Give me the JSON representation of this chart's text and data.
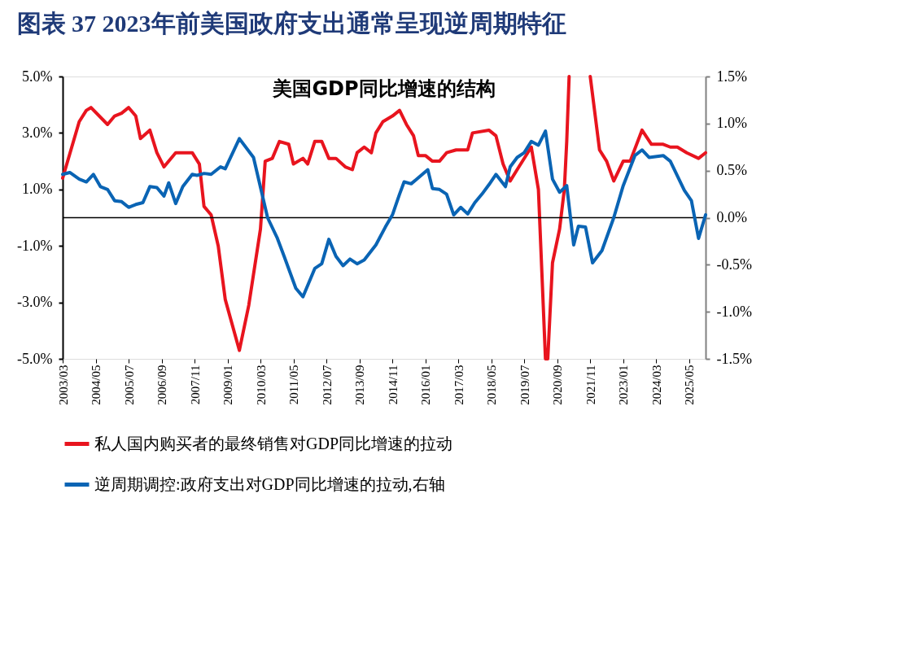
{
  "chart_data": {
    "type": "line",
    "title": "图表 37   2023年前美国政府支出通常呈现逆周期特征",
    "subtitle": "美国GDP同比增速的结构",
    "xlim": [
      "2003-03",
      "2025-12"
    ],
    "xticks": [
      {
        "value": "2003-03",
        "label": "2003/03"
      },
      {
        "value": "2004-05",
        "label": "2004/05"
      },
      {
        "value": "2005-07",
        "label": "2005/07"
      },
      {
        "value": "2006-09",
        "label": "2006/09"
      },
      {
        "value": "2007-11",
        "label": "2007/11"
      },
      {
        "value": "2009-01",
        "label": "2009/01"
      },
      {
        "value": "2010-03",
        "label": "2010/03"
      },
      {
        "value": "2011-05",
        "label": "2011/05"
      },
      {
        "value": "2012-07",
        "label": "2012/07"
      },
      {
        "value": "2013-09",
        "label": "2013/09"
      },
      {
        "value": "2014-11",
        "label": "2014/11"
      },
      {
        "value": "2016-01",
        "label": "2016/01"
      },
      {
        "value": "2017-03",
        "label": "2017/03"
      },
      {
        "value": "2018-05",
        "label": "2018/05"
      },
      {
        "value": "2019-07",
        "label": "2019/07"
      },
      {
        "value": "2020-09",
        "label": "2020/09"
      },
      {
        "value": "2021-11",
        "label": "2021/11"
      },
      {
        "value": "2023-01",
        "label": "2023/01"
      },
      {
        "value": "2024-03",
        "label": "2024/03"
      },
      {
        "value": "2025-05",
        "label": "2025/05"
      }
    ],
    "ylim": [
      -5,
      5
    ],
    "yticks": [
      {
        "value": -5,
        "label": "-5.0%"
      },
      {
        "value": -3,
        "label": "-3.0%"
      },
      {
        "value": -1,
        "label": "-1.0%"
      },
      {
        "value": 1,
        "label": "1.0%"
      },
      {
        "value": 3,
        "label": "3.0%"
      },
      {
        "value": 5,
        "label": "5.0%"
      }
    ],
    "y2lim": [
      -1.5,
      1.5
    ],
    "y2ticks": [
      {
        "value": -1.5,
        "label": "-1.5%"
      },
      {
        "value": -1,
        "label": "-1.0%"
      },
      {
        "value": -0.5,
        "label": "-0.5%"
      },
      {
        "value": 0,
        "label": "0.0%"
      },
      {
        "value": 0.5,
        "label": "0.5%"
      },
      {
        "value": 1,
        "label": "1.0%"
      },
      {
        "value": 1.5,
        "label": "1.5%"
      }
    ],
    "ref_lines": [
      {
        "axis": "y",
        "value": 0,
        "color": "#000000"
      }
    ],
    "grid": false,
    "legend": "bottom",
    "series": [
      {
        "name": "私人国内购买者的最终销售对GDP同比增速的拉动",
        "color": "#e8141e",
        "x": [
          "2003-03",
          "2003-10",
          "2004-01",
          "2004-03",
          "2004-10",
          "2005-01",
          "2005-04",
          "2005-07",
          "2005-10",
          "2005-12",
          "2006-04",
          "2006-07",
          "2006-10",
          "2007-03",
          "2007-10",
          "2008-01",
          "2008-03",
          "2008-06",
          "2008-09",
          "2008-12",
          "2009-06",
          "2009-10",
          "2010-03",
          "2010-05",
          "2010-08",
          "2010-11",
          "2011-03",
          "2011-05",
          "2011-09",
          "2011-11",
          "2012-02",
          "2012-05",
          "2012-08",
          "2012-11",
          "2013-03",
          "2013-06",
          "2013-08",
          "2013-11",
          "2014-02",
          "2014-04",
          "2014-07",
          "2014-11",
          "2015-02",
          "2015-05",
          "2015-08",
          "2015-10",
          "2016-01",
          "2016-04",
          "2016-07",
          "2016-10",
          "2017-02",
          "2017-04",
          "2017-07",
          "2017-09",
          "2018-04",
          "2018-07",
          "2018-10",
          "2019-01",
          "2019-04",
          "2019-10",
          "2020-01",
          "2020-04",
          "2020-05",
          "2020-07",
          "2020-10",
          "2020-12",
          "2021-01",
          "2021-02",
          "2021-06",
          "2021-11",
          "2022-03",
          "2022-06",
          "2022-09",
          "2023-01",
          "2023-04",
          "2023-09",
          "2024-01",
          "2024-04",
          "2024-06",
          "2024-09",
          "2024-12",
          "2025-04",
          "2025-09",
          "2025-12"
        ],
        "values": [
          1.4,
          3.4,
          3.8,
          3.9,
          3.3,
          3.6,
          3.7,
          3.9,
          3.6,
          2.8,
          3.1,
          2.3,
          1.8,
          2.3,
          2.3,
          1.9,
          0.4,
          0.1,
          -1.0,
          -2.9,
          -4.7,
          -3.1,
          -0.4,
          2.0,
          2.1,
          2.7,
          2.6,
          1.9,
          2.1,
          1.9,
          2.7,
          2.7,
          2.1,
          2.1,
          1.8,
          1.7,
          2.3,
          2.5,
          2.3,
          3.0,
          3.4,
          3.6,
          3.8,
          3.3,
          2.9,
          2.2,
          2.2,
          2.0,
          2.0,
          2.3,
          2.4,
          2.4,
          2.4,
          3.0,
          3.1,
          2.9,
          1.9,
          1.3,
          1.7,
          2.5,
          1.0,
          -5.0,
          -5.0,
          -1.6,
          -0.4,
          1.0,
          2.7,
          5.0,
          null,
          5.0,
          2.4,
          2.0,
          1.3,
          2.0,
          2.0,
          3.1,
          2.6,
          2.6,
          2.6,
          2.5,
          2.5,
          2.3,
          2.1,
          2.3
        ]
      },
      {
        "name": "逆周期调控:政府支出对GDP同比增速的拉动,右轴",
        "color": "#0a64b4",
        "axis": "y2",
        "x": [
          "2003-03",
          "2003-06",
          "2003-10",
          "2004-01",
          "2004-04",
          "2004-07",
          "2004-10",
          "2005-01",
          "2005-04",
          "2005-07",
          "2005-10",
          "2006-01",
          "2006-04",
          "2006-07",
          "2006-10",
          "2006-12",
          "2007-03",
          "2007-06",
          "2007-10",
          "2007-12",
          "2008-03",
          "2008-06",
          "2008-10",
          "2008-12",
          "2009-06",
          "2009-12",
          "2010-06",
          "2010-10",
          "2011-01",
          "2011-06",
          "2011-09",
          "2012-02",
          "2012-05",
          "2012-08",
          "2012-11",
          "2013-02",
          "2013-05",
          "2013-08",
          "2013-11",
          "2014-04",
          "2014-08",
          "2014-11",
          "2015-02",
          "2015-04",
          "2015-07",
          "2016-02",
          "2016-04",
          "2016-07",
          "2016-10",
          "2017-01",
          "2017-04",
          "2017-07",
          "2017-10",
          "2018-01",
          "2018-04",
          "2018-07",
          "2018-11",
          "2019-01",
          "2019-04",
          "2019-07",
          "2019-10",
          "2020-01",
          "2020-04",
          "2020-07",
          "2020-10",
          "2021-01",
          "2021-04",
          "2021-06",
          "2021-09",
          "2021-12",
          "2022-04",
          "2022-09",
          "2023-01",
          "2023-06",
          "2023-09",
          "2023-12",
          "2024-06",
          "2024-09",
          "2025-03",
          "2025-06",
          "2025-09",
          "2025-12"
        ],
        "values": [
          0.46,
          0.48,
          0.41,
          0.38,
          0.46,
          0.33,
          0.3,
          0.18,
          0.17,
          0.11,
          0.14,
          0.16,
          0.33,
          0.32,
          0.23,
          0.37,
          0.15,
          0.33,
          0.46,
          0.45,
          0.47,
          0.46,
          0.54,
          0.52,
          0.84,
          0.64,
          0.0,
          -0.21,
          -0.41,
          -0.75,
          -0.84,
          -0.54,
          -0.49,
          -0.23,
          -0.41,
          -0.51,
          -0.44,
          -0.49,
          -0.45,
          -0.29,
          -0.1,
          0.03,
          0.25,
          0.38,
          0.36,
          0.51,
          0.31,
          0.3,
          0.25,
          0.03,
          0.11,
          0.04,
          0.16,
          0.25,
          0.35,
          0.46,
          0.33,
          0.54,
          0.64,
          0.69,
          0.81,
          0.77,
          0.92,
          0.41,
          0.27,
          0.34,
          -0.29,
          -0.09,
          -0.1,
          -0.48,
          -0.35,
          0.0,
          0.34,
          0.66,
          0.72,
          0.64,
          0.66,
          0.6,
          0.29,
          0.18,
          -0.22,
          0.03
        ]
      }
    ]
  }
}
